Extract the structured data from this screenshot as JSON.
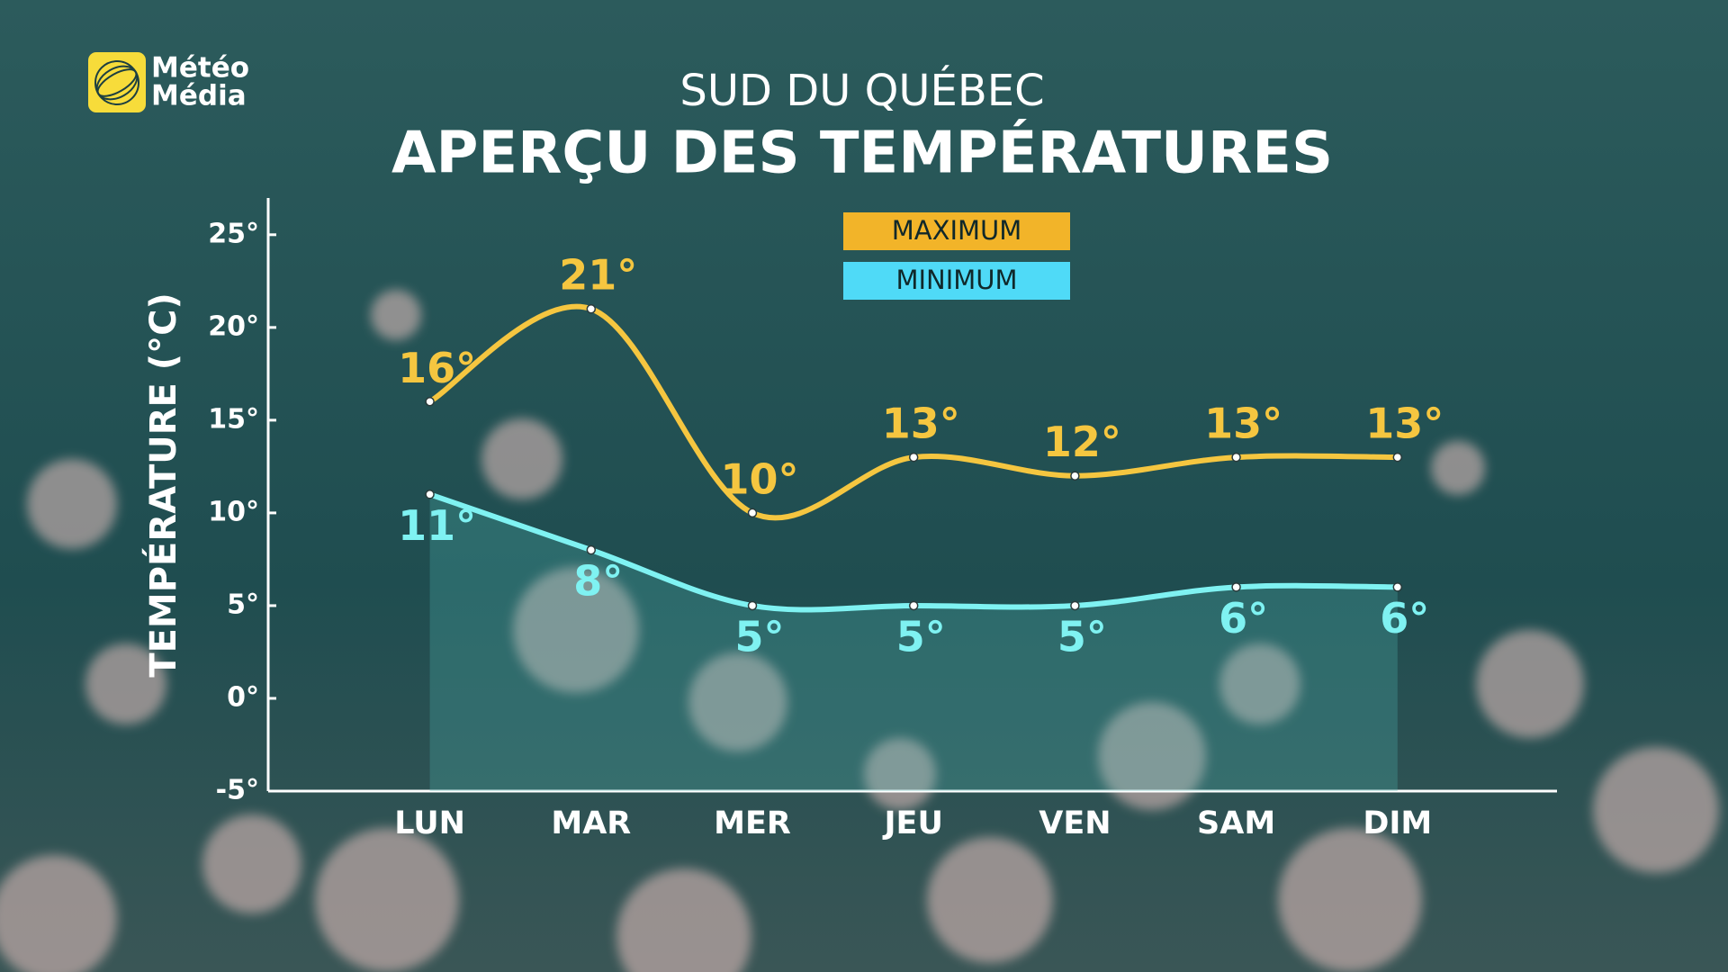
{
  "logo": [
    "Météo",
    "Média"
  ],
  "chart_data": {
    "type": "line",
    "subtitle": "SUD DU QUÉBEC",
    "title": "APERÇU DES TEMPÉRATURES",
    "y_label": "TEMPÉRATURE (°C)",
    "categories": [
      "LUN",
      "MAR",
      "MER",
      "JEU",
      "VEN",
      "SAM",
      "DIM"
    ],
    "series": [
      {
        "name": "MAXIMUM",
        "color": "#f5c640",
        "legend_color": "#f2b429",
        "values": [
          16,
          21,
          10,
          13,
          12,
          13,
          13
        ],
        "value_labels": [
          "16°",
          "21°",
          "10°",
          "13°",
          "12°",
          "13°",
          "13°"
        ]
      },
      {
        "name": "MINIMUM",
        "color": "#7ff2f2",
        "legend_color": "#4fdaf7",
        "values": [
          11,
          8,
          5,
          5,
          5,
          6,
          6
        ],
        "value_labels": [
          "11°",
          "8°",
          "5°",
          "5°",
          "5°",
          "6°",
          "6°"
        ]
      }
    ],
    "ylim": [
      -5,
      27
    ],
    "yticks": [
      {
        "value": -5,
        "label": "-5°"
      },
      {
        "value": 0,
        "label": "0°"
      },
      {
        "value": 5,
        "label": "5°"
      },
      {
        "value": 10,
        "label": "10°"
      },
      {
        "value": 15,
        "label": "15°"
      },
      {
        "value": 20,
        "label": "20°"
      },
      {
        "value": 25,
        "label": "25°"
      }
    ],
    "grid": false
  }
}
